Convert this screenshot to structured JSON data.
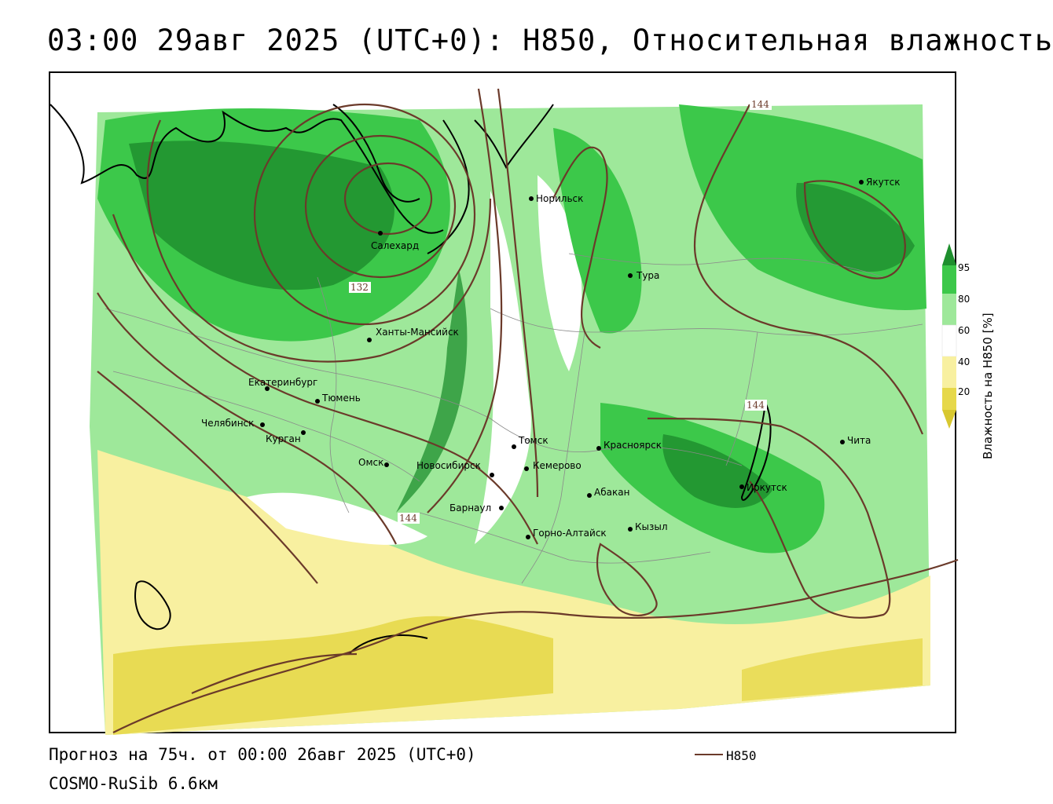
{
  "title": "03:00 29авг 2025 (UTC+0): H850, Относительная влажность",
  "footer": {
    "forecast": "Прогноз на 75ч. от 00:00 26авг 2025 (UTC+0)",
    "model": "COSMO-RuSib 6.6км"
  },
  "legend": {
    "line_label": "H850",
    "line_color": "#6b3a2a"
  },
  "colorbar": {
    "title": "Влажность на H850 [%]",
    "ticks": [
      "95",
      "80",
      "60",
      "40",
      "20"
    ],
    "colors": {
      "very_wet": "#1e8f2e",
      "wet": "#3cc84a",
      "moist": "#9ee89a",
      "neutral": "#ffffff",
      "dry": "#f8f0a0",
      "very_dry": "#e6d84a"
    }
  },
  "contour_labels": [
    "144",
    "132",
    "144",
    "144"
  ],
  "cities": [
    {
      "name": "Норильск"
    },
    {
      "name": "Якутск"
    },
    {
      "name": "Салехард"
    },
    {
      "name": "Тура"
    },
    {
      "name": "Ханты-Мансийск"
    },
    {
      "name": "Екатеринбург"
    },
    {
      "name": "Тюмень"
    },
    {
      "name": "Челябинск"
    },
    {
      "name": "Курган"
    },
    {
      "name": "Омск"
    },
    {
      "name": "Томск"
    },
    {
      "name": "Новосибирск"
    },
    {
      "name": "Кемерово"
    },
    {
      "name": "Красноярск"
    },
    {
      "name": "Барнаул"
    },
    {
      "name": "Абакан"
    },
    {
      "name": "Иркутск"
    },
    {
      "name": "Чита"
    },
    {
      "name": "Кызыл"
    },
    {
      "name": "Горно-Алтайск"
    }
  ]
}
